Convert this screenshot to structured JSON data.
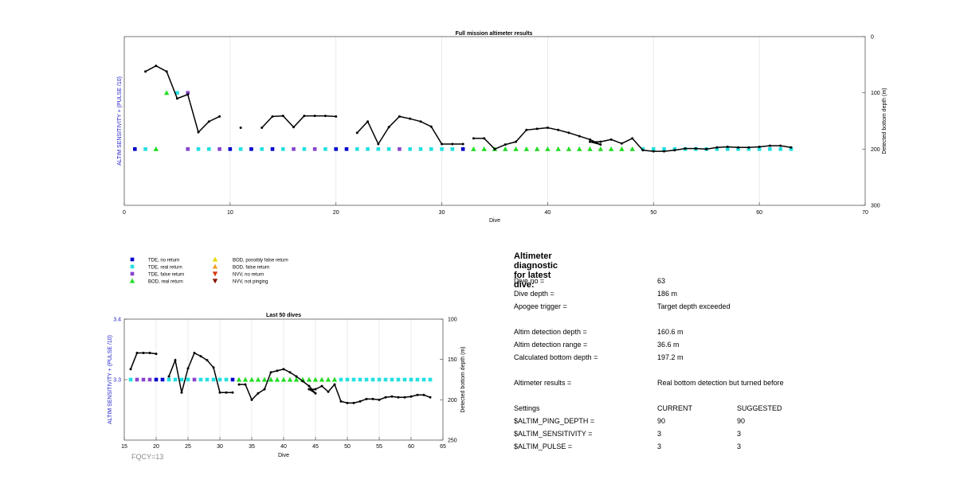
{
  "chart_data": [
    {
      "type": "line",
      "title": "Full mission altimeter results",
      "xlabel": "Dive",
      "ylabel_left": "ALTIM SENSITIVITY + (PULSE /10)",
      "ylabel_right": "Detected bottom depth (m)",
      "xlim": [
        0,
        70
      ],
      "x_ticks": [
        "0",
        "10",
        "20",
        "30",
        "40",
        "50",
        "60",
        "70"
      ],
      "y_right_lim": [
        0,
        300
      ],
      "y_right_ticks": [
        "0",
        "100",
        "200",
        "300"
      ],
      "y_right_reversed": true,
      "grid": "vertical",
      "series": [
        {
          "name": "Detected bottom depth",
          "segments": [
            [
              [
                2,
                62
              ],
              [
                3,
                52
              ],
              [
                4,
                62
              ],
              [
                5,
                110
              ],
              [
                6,
                103
              ],
              [
                7,
                170
              ],
              [
                8,
                151
              ],
              [
                9,
                142
              ]
            ],
            [
              [
                11,
                162
              ]
            ],
            [
              [
                13,
                162
              ],
              [
                14,
                142
              ],
              [
                15,
                141
              ],
              [
                16,
                161
              ],
              [
                17,
                141
              ],
              [
                18,
                141
              ],
              [
                19,
                141
              ],
              [
                20,
                142
              ]
            ],
            [
              [
                22,
                171
              ],
              [
                23,
                151
              ],
              [
                24,
                191
              ],
              [
                25,
                161
              ],
              [
                26,
                142
              ],
              [
                27,
                146
              ],
              [
                28,
                151
              ],
              [
                29,
                160
              ],
              [
                30,
                191
              ],
              [
                31,
                191
              ],
              [
                32,
                191
              ]
            ],
            [
              [
                33,
                181
              ],
              [
                34,
                181
              ],
              [
                35,
                200
              ],
              [
                36,
                192
              ],
              [
                37,
                187
              ],
              [
                38,
                166
              ],
              [
                39,
                164
              ],
              [
                40,
                162
              ],
              [
                41,
                166
              ],
              [
                42,
                171
              ],
              [
                43,
                177
              ],
              [
                44,
                183
              ],
              [
                45,
                192
              ],
              [
                44,
                187
              ],
              [
                45,
                187
              ],
              [
                46,
                183
              ],
              [
                47,
                190
              ],
              [
                48,
                181
              ],
              [
                49,
                202
              ],
              [
                50,
                204
              ],
              [
                51,
                204
              ],
              [
                52,
                202
              ],
              [
                53,
                199
              ],
              [
                54,
                199
              ],
              [
                55,
                200
              ],
              [
                56,
                197
              ],
              [
                57,
                196
              ],
              [
                58,
                197
              ],
              [
                59,
                197
              ],
              [
                60,
                196
              ],
              [
                61,
                194
              ],
              [
                62,
                194
              ],
              [
                63,
                197
              ]
            ]
          ]
        }
      ],
      "markers": {
        "tde_no_return": [
          1,
          10,
          12,
          14,
          20,
          21,
          32
        ],
        "tde_real_return": [
          2,
          7,
          8,
          11,
          13,
          15,
          17,
          19,
          22,
          23,
          24,
          25,
          27,
          28,
          29,
          30,
          31,
          49,
          50,
          51,
          52,
          53,
          54,
          55,
          56,
          57,
          58,
          59,
          60,
          61,
          62,
          63
        ],
        "tde_false_return": [
          6,
          9,
          16,
          18,
          26
        ],
        "bod_real_return": [
          3,
          33,
          34,
          35,
          36,
          37,
          38,
          39,
          40,
          41,
          42,
          43,
          44,
          45,
          46,
          47,
          48
        ],
        "bod_real_return_high": [
          4
        ],
        "tde_real_return_high": [
          5
        ],
        "tde_false_return_high": [
          6
        ]
      },
      "marker_levels_depth": {
        "base": 200,
        "high": 100
      }
    },
    {
      "type": "line",
      "title": "Last 50 dives",
      "xlabel": "Dive",
      "ylabel_left": "ALTIM SENSITIVITY + (PULSE /10)",
      "ylabel_right": "Detected bottom depth (m)",
      "xlim": [
        15,
        65
      ],
      "x_ticks": [
        "15",
        "20",
        "25",
        "30",
        "35",
        "40",
        "45",
        "50",
        "55",
        "60",
        "65"
      ],
      "y_left_lim": [
        3.2,
        3.4
      ],
      "y_left_ticks": [
        "3.4",
        "3.3"
      ],
      "y_right_lim": [
        100,
        250
      ],
      "y_right_ticks": [
        "100",
        "150",
        "200",
        "250"
      ],
      "y_right_reversed": true,
      "grid": "vertical",
      "series": [
        {
          "name": "Detected bottom depth",
          "segments": [
            [
              [
                16,
                162
              ],
              [
                17,
                142
              ],
              [
                18,
                142
              ],
              [
                19,
                142
              ],
              [
                20,
                143
              ]
            ],
            [
              [
                22,
                171
              ],
              [
                23,
                151
              ],
              [
                24,
                191
              ],
              [
                25,
                161
              ],
              [
                26,
                142
              ],
              [
                27,
                146
              ],
              [
                28,
                151
              ],
              [
                29,
                160
              ],
              [
                30,
                191
              ],
              [
                31,
                191
              ],
              [
                32,
                191
              ]
            ],
            [
              [
                33,
                181
              ],
              [
                34,
                181
              ],
              [
                35,
                200
              ],
              [
                36,
                192
              ],
              [
                37,
                187
              ],
              [
                38,
                166
              ],
              [
                39,
                164
              ],
              [
                40,
                162
              ],
              [
                41,
                166
              ],
              [
                42,
                171
              ],
              [
                43,
                177
              ],
              [
                44,
                183
              ],
              [
                45,
                192
              ],
              [
                44,
                187
              ],
              [
                45,
                187
              ],
              [
                46,
                183
              ],
              [
                47,
                190
              ],
              [
                48,
                181
              ],
              [
                49,
                202
              ],
              [
                50,
                204
              ],
              [
                51,
                204
              ],
              [
                52,
                202
              ],
              [
                53,
                199
              ],
              [
                54,
                199
              ],
              [
                55,
                200
              ],
              [
                56,
                197
              ],
              [
                57,
                196
              ],
              [
                58,
                197
              ],
              [
                59,
                197
              ],
              [
                60,
                196
              ],
              [
                61,
                194
              ],
              [
                62,
                194
              ],
              [
                63,
                197
              ]
            ]
          ]
        }
      ],
      "markers": {
        "tde_no_return": [
          20,
          21,
          32
        ],
        "tde_real_return": [
          16,
          22,
          23,
          24,
          25,
          27,
          28,
          29,
          30,
          31,
          49,
          50,
          51,
          52,
          53,
          54,
          55,
          56,
          57,
          58,
          59,
          60,
          61,
          62,
          63
        ],
        "tde_false_return": [
          17,
          18,
          19,
          26
        ],
        "bod_real_return": [
          33,
          34,
          35,
          36,
          37,
          38,
          39,
          40,
          41,
          42,
          43,
          44,
          45,
          46,
          47,
          48
        ]
      },
      "marker_level_left": 3.3
    }
  ],
  "legend": {
    "left": [
      {
        "label": "TDE, no return",
        "color": "#0000cc",
        "shape": "square"
      },
      {
        "label": "TDE, real return",
        "color": "#22e0e0",
        "shape": "square"
      },
      {
        "label": "TDE, false return",
        "color": "#8844cc",
        "shape": "square"
      },
      {
        "label": "BOD, real return",
        "color": "#22dd22",
        "shape": "triangle-up"
      }
    ],
    "right": [
      {
        "label": "BOD, possibly false return",
        "color": "#e8d800",
        "shape": "triangle-up"
      },
      {
        "label": "BOD, false return",
        "color": "#f0a020",
        "shape": "triangle-up"
      },
      {
        "label": "NVV, no return",
        "color": "#dd3311",
        "shape": "triangle-down"
      },
      {
        "label": "NVV, not pinging",
        "color": "#881100",
        "shape": "triangle-down"
      }
    ]
  },
  "colors": {
    "line": "#000000",
    "axis_label_left": "#1e1ec8",
    "tde_no_return": "#0000cc",
    "tde_real_return": "#22e0e0",
    "tde_false_return": "#8844cc",
    "bod_real_return": "#22dd22",
    "grid": "#e6e6e6",
    "fqcy": "#8a8a8a"
  },
  "fqcy": "FQCY=13",
  "diagnostic": {
    "title": "Altimeter diagnostic for latest dive:",
    "dive_no_label": "Dive no =",
    "dive_no": "63",
    "dive_depth_label": "Dive depth =",
    "dive_depth": "186 m",
    "apogee_label": "Apogee trigger =",
    "apogee": "Target depth exceeded",
    "altim_detection_depth_label": "Altim detection depth =",
    "altim_detection_depth": "160.6 m",
    "altim_detection_range_label": "Altim detection range =",
    "altim_detection_range": "36.6 m",
    "calc_bottom_depth_label": "Calculated bottom depth =",
    "calc_bottom_depth": "197.2 m",
    "results_label": "Altimeter results =",
    "results": "Real bottom detection but turned before",
    "settings_label": "Settings",
    "current_label": "CURRENT",
    "suggested_label": "SUGGESTED",
    "ping_depth_label": "$ALTIM_PING_DEPTH =",
    "ping_depth_current": "90",
    "ping_depth_suggested": "90",
    "sensitivity_label": "$ALTIM_SENSITIVITY =",
    "sensitivity_current": "3",
    "sensitivity_suggested": "3",
    "pulse_label": "$ALTIM_PULSE =",
    "pulse_current": "3",
    "pulse_suggested": "3"
  }
}
